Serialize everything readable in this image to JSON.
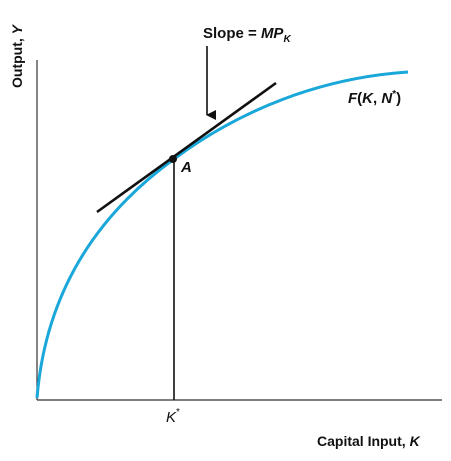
{
  "diagram": {
    "y_axis_label": {
      "text": "Output, ",
      "var": "Y"
    },
    "x_axis_label": {
      "text": "Capital Input, ",
      "var": "K"
    },
    "slope_label": {
      "prefix": "Slope = ",
      "mp": "MP",
      "sub": "K"
    },
    "curve_label": {
      "f": "F",
      "open": "(",
      "k": "K",
      "comma": ", ",
      "n": "N",
      "star": "*",
      "close": ")"
    },
    "point_label": "A",
    "k_star_label": {
      "k": "K",
      "star": "*"
    }
  },
  "colors": {
    "curve": "#1aa7d9",
    "axis": "#333333",
    "tangent": "#111111",
    "text": "#111111"
  },
  "icons": {
    "arrow": "down-arrow-icon",
    "point": "point-marker-icon"
  }
}
